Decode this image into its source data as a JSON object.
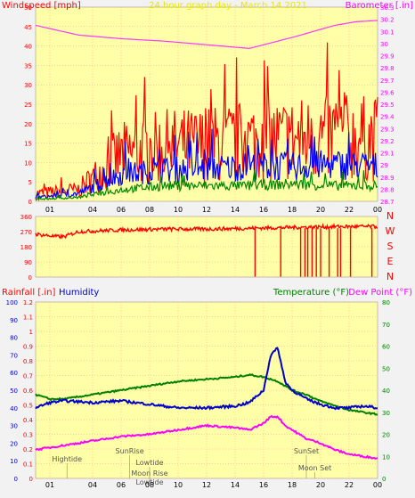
{
  "chart_data": [
    {
      "type": "line",
      "title": "24 hour graph day - March 14 2021",
      "ylabel_left": "Windspeed [mph]",
      "ylabel_right": "Barometer [.in]",
      "ylim_left": [
        0,
        50
      ],
      "ylim_right": [
        28.7,
        30.3
      ],
      "left_ticks": [
        "0",
        "5",
        "10",
        "15",
        "20",
        "25",
        "30",
        "35",
        "40",
        "45",
        "50"
      ],
      "right_ticks": [
        "28.7",
        "28.8",
        "28.9",
        "29",
        "29.1",
        "29.2",
        "29.3",
        "29.4",
        "29.5",
        "29.6",
        "29.7",
        "29.8",
        "29.9",
        "30",
        "30.1",
        "30.2",
        "30.3"
      ],
      "x_ticks": [
        "01",
        "04",
        "06",
        "08",
        "10",
        "12",
        "14",
        "16",
        "18",
        "20",
        "22",
        "00"
      ],
      "series": [
        {
          "name": "gust",
          "color": "#ff0000",
          "x": [
            0,
            3,
            6,
            9,
            12,
            15,
            18,
            21,
            24
          ],
          "values": [
            2,
            3,
            12,
            14,
            14.5,
            15.5,
            16,
            16.5,
            16
          ]
        },
        {
          "name": "average",
          "color": "#0000ff",
          "x": [
            0,
            3,
            6,
            9,
            12,
            15,
            18,
            21,
            24
          ],
          "values": [
            1,
            2,
            7,
            8,
            8.5,
            9,
            9,
            9.5,
            9
          ]
        },
        {
          "name": "min",
          "color": "#008800",
          "x": [
            0,
            3,
            6,
            9,
            12,
            15,
            18,
            21,
            24
          ],
          "values": [
            0.5,
            1,
            3,
            4,
            4,
            4,
            4.5,
            4,
            4
          ]
        },
        {
          "name": "barometer",
          "color": "#ff33ff",
          "x": [
            0,
            3,
            6,
            9,
            12,
            15,
            18,
            21,
            22.5,
            24
          ],
          "values": [
            30.15,
            30.07,
            30.04,
            30.02,
            29.99,
            29.96,
            30.05,
            30.15,
            30.18,
            30.19
          ]
        }
      ]
    },
    {
      "type": "scatter",
      "ylim": [
        0,
        360
      ],
      "left_ticks": [
        "0",
        "90",
        "180",
        "270",
        "360"
      ],
      "right_labels": [
        "N",
        "W",
        "S",
        "E",
        "N"
      ],
      "x_ticks": [
        "01",
        "04",
        "06",
        "08",
        "10",
        "12",
        "14",
        "16",
        "18",
        "20",
        "22",
        "00"
      ],
      "series": [
        {
          "name": "direction",
          "color": "#ff0000",
          "x": [
            0,
            1.5,
            2,
            3,
            6,
            9,
            12,
            15,
            18,
            21,
            24
          ],
          "values": [
            255,
            240,
            240,
            270,
            280,
            285,
            285,
            290,
            295,
            300,
            300
          ]
        }
      ]
    },
    {
      "type": "line",
      "ylabel_left_1": "Rainfall [.in]",
      "ylabel_left_2": "Humidity",
      "ylabel_right_1": "Temperature (°F)",
      "ylabel_right_2": "Dew Point (°F)",
      "ylim_rain": [
        0,
        1.2
      ],
      "ylim_humidity": [
        0,
        100
      ],
      "ylim_temp": [
        0,
        80
      ],
      "rain_ticks": [
        "0",
        "0.1",
        "0.2",
        "0.3",
        "0.4",
        "0.5",
        "0.6",
        "0.7",
        "0.8",
        "0.9",
        "1",
        "1.1",
        "1.2"
      ],
      "humidity_ticks": [
        "0",
        "10",
        "20",
        "30",
        "40",
        "50",
        "60",
        "70",
        "80",
        "90",
        "100"
      ],
      "temp_ticks": [
        "0",
        "10",
        "20",
        "30",
        "40",
        "50",
        "60",
        "70",
        "80"
      ],
      "x_ticks": [
        "01",
        "04",
        "06",
        "08",
        "10",
        "12",
        "14",
        "16",
        "18",
        "20",
        "22",
        "00"
      ],
      "series": [
        {
          "name": "temperature",
          "color": "#008000",
          "x": [
            0,
            1,
            2,
            4,
            6,
            8,
            10,
            12,
            14,
            15,
            16,
            17,
            18,
            19,
            20,
            21,
            22,
            23,
            24
          ],
          "values": [
            38,
            36,
            36,
            38,
            40,
            42,
            44,
            45,
            46,
            47,
            46,
            44,
            40,
            38,
            35,
            33,
            31,
            30,
            29
          ]
        },
        {
          "name": "humidity",
          "color": "#0000cc",
          "x": [
            0,
            1,
            2,
            4,
            6,
            8,
            10,
            12,
            14,
            15,
            16,
            16.5,
            17,
            17.5,
            18,
            19,
            20,
            21,
            22,
            23,
            24
          ],
          "values": [
            40,
            43,
            44,
            43,
            44,
            42,
            40,
            40,
            41,
            43,
            50,
            70,
            74,
            55,
            50,
            45,
            42,
            40,
            40,
            41,
            40
          ]
        },
        {
          "name": "dewpoint",
          "color": "#ff00ff",
          "x": [
            0,
            1,
            2,
            4,
            6,
            8,
            10,
            12,
            14,
            15,
            16,
            16.5,
            17,
            17.5,
            18,
            19,
            20,
            21,
            22,
            23,
            24
          ],
          "values": [
            13,
            14,
            15,
            17,
            19,
            20,
            22,
            24,
            23,
            22,
            25,
            28,
            28,
            24,
            22,
            18,
            16,
            13,
            11,
            10,
            9
          ]
        }
      ],
      "annotations": [
        "Hightide",
        "SunRise",
        "Lowtide",
        "Moon Rise",
        "SunSet",
        "Moon Set",
        "Lowtide"
      ]
    }
  ]
}
